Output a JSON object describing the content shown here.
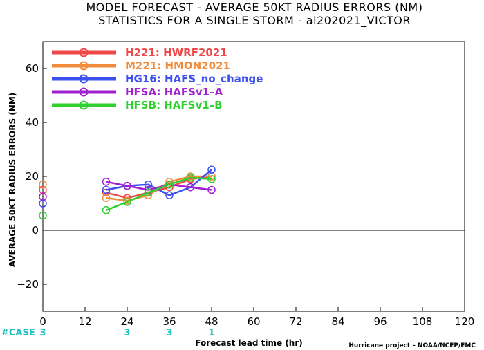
{
  "chart_data": {
    "type": "line",
    "title": [
      "MODEL FORECAST - AVERAGE 50KT RADIUS ERRORS (NM)",
      "STATISTICS FOR A SINGLE STORM - al202021_VICTOR"
    ],
    "xlabel": "Forecast lead time (hr)",
    "ylabel": "AVERAGE 50KT RADIUS ERRORS (NM)",
    "xlim": [
      0,
      120
    ],
    "ylim": [
      -30,
      70
    ],
    "xticks": [
      "0",
      "12",
      "24",
      "36",
      "48",
      "60",
      "72",
      "84",
      "96",
      "108",
      "120"
    ],
    "yticks": [
      "−20",
      "0",
      "20",
      "40",
      "60"
    ],
    "case_label": "#CASE",
    "cases": [
      {
        "x": 0,
        "count": "3"
      },
      {
        "x": 24,
        "count": "3"
      },
      {
        "x": 36,
        "count": "3"
      },
      {
        "x": 48,
        "count": "1"
      }
    ],
    "credit": "Hurricane project – NOAA/NCEP/EMC",
    "series": [
      {
        "name": "H221: HWRF2021",
        "color": "#f04848",
        "x": [
          0,
          18,
          24,
          30,
          36,
          42,
          48
        ],
        "y": [
          15,
          14,
          12,
          14,
          16,
          19,
          20
        ]
      },
      {
        "name": "M221: HMON2021",
        "color": "#f08c3c",
        "x": [
          0,
          18,
          24,
          30,
          36,
          42,
          48
        ],
        "y": [
          17,
          12,
          11,
          13,
          18,
          20,
          20
        ]
      },
      {
        "name": "HG16: HAFS_no_change",
        "color": "#3c50f0",
        "x": [
          0,
          18,
          24,
          30,
          36,
          42,
          48
        ],
        "y": [
          10,
          15,
          16.5,
          17,
          13,
          16,
          22.5
        ]
      },
      {
        "name": "HFSA: HAFSv1–A",
        "color": "#a020d0",
        "x": [
          0,
          18,
          24,
          30,
          36,
          42,
          48
        ],
        "y": [
          12.5,
          18,
          16.5,
          15,
          17,
          16,
          15
        ]
      },
      {
        "name": "HFSB: HAFSv1–B",
        "color": "#30d030",
        "x": [
          0,
          18,
          24,
          30,
          36,
          42,
          48
        ],
        "y": [
          5.5,
          7.5,
          10.5,
          14,
          17,
          19.5,
          19
        ]
      }
    ]
  }
}
